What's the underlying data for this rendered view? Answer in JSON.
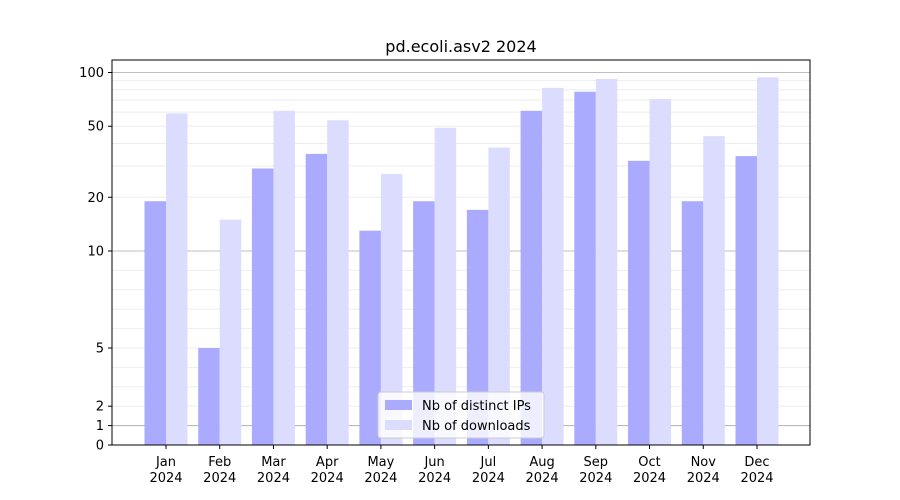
{
  "chart_data": {
    "type": "bar",
    "title": "pd.ecoli.asv2 2024",
    "xlabel": "",
    "ylabel": "",
    "scale": "symlog",
    "categories": [
      "Jan\n2024",
      "Feb\n2024",
      "Mar\n2024",
      "Apr\n2024",
      "May\n2024",
      "Jun\n2024",
      "Jul\n2024",
      "Aug\n2024",
      "Sep\n2024",
      "Oct\n2024",
      "Nov\n2024",
      "Dec\n2024"
    ],
    "series": [
      {
        "name": "Nb of distinct IPs",
        "color": "#aaaaff",
        "values": [
          19,
          5,
          29,
          35,
          13,
          19,
          17,
          61,
          78,
          32,
          19,
          34
        ]
      },
      {
        "name": "Nb of downloads",
        "color": "#dcdcff",
        "values": [
          59,
          15,
          61,
          54,
          27,
          49,
          38,
          82,
          92,
          71,
          44,
          94
        ]
      }
    ],
    "yticks": [
      0,
      1,
      2,
      5,
      10,
      20,
      50,
      100
    ],
    "ylim": [
      0,
      120
    ],
    "grid": true,
    "legend": "bottom-center"
  }
}
